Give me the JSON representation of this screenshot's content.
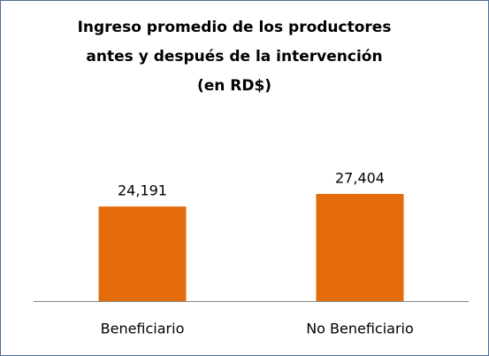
{
  "chart_data": {
    "type": "bar",
    "title": [
      "Ingreso promedio de los productores",
      "antes y después de la intervención",
      "(en RD$)"
    ],
    "categories": [
      "Beneficiario",
      "No Beneficiario"
    ],
    "values": [
      24191,
      27404
    ],
    "value_labels": [
      "24,191",
      "27,404"
    ],
    "color": "#e46c0a"
  }
}
